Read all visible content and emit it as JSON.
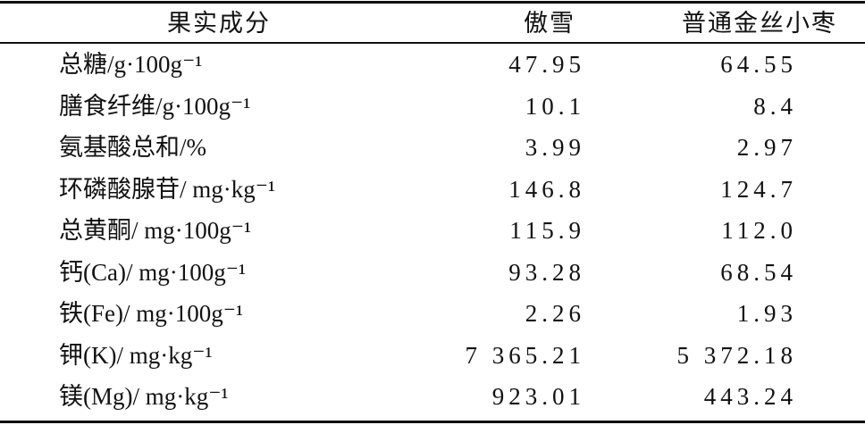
{
  "table": {
    "header": [
      "果实成分",
      "傲雪",
      "普通金丝小枣"
    ],
    "rows": [
      [
        "总糖/g·100g⁻¹",
        "47.95",
        "64.55"
      ],
      [
        "膳食纤维/g·100g⁻¹",
        "10.1",
        "8.4"
      ],
      [
        "氨基酸总和/%",
        "3.99",
        "2.97"
      ],
      [
        "环磷酸腺苷/ mg·kg⁻¹",
        "146.8",
        "124.7"
      ],
      [
        "总黄酮/ mg·100g⁻¹",
        "115.9",
        "112.0"
      ],
      [
        "钙(Ca)/ mg·100g⁻¹",
        "93.28",
        "68.54"
      ],
      [
        "铁(Fe)/ mg·100g⁻¹",
        "2.26",
        "1.93"
      ],
      [
        "钾(K)/ mg·kg⁻¹",
        "7 365.21",
        "5 372.18"
      ],
      [
        "镁(Mg)/ mg·kg⁻¹",
        "923.01",
        "443.24"
      ]
    ]
  }
}
